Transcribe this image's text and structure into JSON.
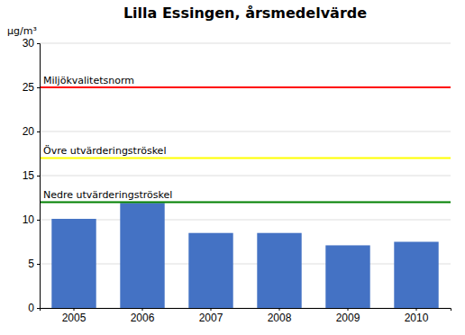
{
  "chart_data": {
    "type": "bar",
    "title": "Lilla Essingen, årsmedelvärde",
    "ylabel": "μg/m³",
    "categories": [
      "2005",
      "2006",
      "2007",
      "2008",
      "2009",
      "2010"
    ],
    "values": [
      10.1,
      11.9,
      8.5,
      8.5,
      7.1,
      7.5
    ],
    "color": "#4472C4",
    "ylim": [
      0,
      30
    ],
    "yticks": [
      0,
      5,
      10,
      15,
      20,
      25,
      30
    ],
    "grid": true,
    "hlines": [
      {
        "y": 25,
        "color": "#FF0000",
        "label": "Miljökvalitetsnorm"
      },
      {
        "y": 17,
        "color": "#FFFF00",
        "label": "Övre utvärderingströskel"
      },
      {
        "y": 12,
        "color": "#008000",
        "label": "Nedre utvärderingströskel"
      }
    ]
  }
}
